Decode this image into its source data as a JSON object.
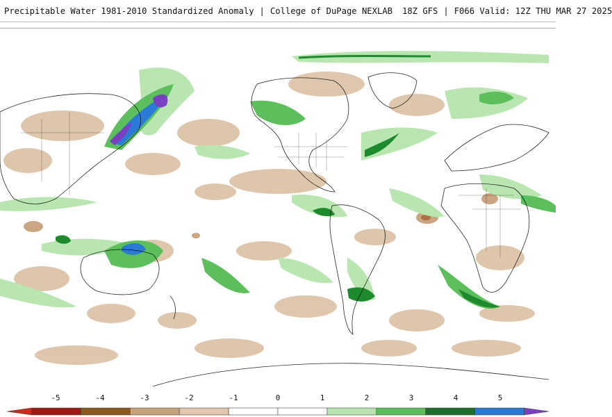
{
  "header": {
    "title": "Precipitable Water 1981-2010 Standardized Anomaly",
    "source": "College of DuPage NEXLAB",
    "model": "18Z GFS",
    "forecast": "F066 Valid: 12Z THU MAR 27 2025"
  },
  "map": {
    "projection": "global equirectangular, centered on the Americas",
    "colors": {
      "land_outline": "#000000",
      "neg_light": "#dcc4a8",
      "neg_mid": "#c9a17b",
      "neg_dark": "#a86a3a",
      "pos_light": "#b9e6b0",
      "pos_mid": "#5cbf5c",
      "pos_dark": "#1d8a2d",
      "pos_blue": "#2b7bd6",
      "pos_purple": "#7b3fc4"
    }
  },
  "legend": {
    "labels": [
      "-5",
      "-4",
      "-3",
      "-2",
      "-1",
      "0",
      "1",
      "2",
      "3",
      "4",
      "5"
    ],
    "segments": [
      {
        "from": -5.5,
        "to": -5,
        "color": "#cc2a1a"
      },
      {
        "from": -5,
        "to": -4,
        "color": "#9e1b14"
      },
      {
        "from": -4,
        "to": -3,
        "color": "#8a5a1a"
      },
      {
        "from": -3,
        "to": -2,
        "color": "#c9a17b"
      },
      {
        "from": -2,
        "to": -1,
        "color": "#e2c9ad"
      },
      {
        "from": -1,
        "to": 0,
        "color": "#ffffff"
      },
      {
        "from": 0,
        "to": 1,
        "color": "#ffffff"
      },
      {
        "from": 1,
        "to": 2,
        "color": "#b9e6b0"
      },
      {
        "from": 2,
        "to": 3,
        "color": "#5cbf5c"
      },
      {
        "from": 3,
        "to": 4,
        "color": "#1d6e2a"
      },
      {
        "from": 4,
        "to": 5,
        "color": "#2b7bd6"
      },
      {
        "from": 5,
        "to": 5.5,
        "color": "#7b3fc4"
      }
    ]
  }
}
